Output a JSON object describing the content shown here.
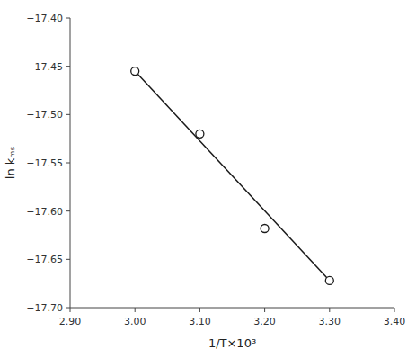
{
  "chart_data": {
    "type": "scatter",
    "xlabel": "1/T×10³",
    "ylabel": "ln kₘₛ",
    "xlim": [
      2.9,
      3.4
    ],
    "ylim": [
      -17.7,
      -17.4
    ],
    "xticks": [
      {
        "value": 2.9,
        "label": "2.90"
      },
      {
        "value": 3.0,
        "label": "3.00"
      },
      {
        "value": 3.1,
        "label": "3.10"
      },
      {
        "value": 3.2,
        "label": "3.20"
      },
      {
        "value": 3.3,
        "label": "3.30"
      },
      {
        "value": 3.4,
        "label": "3.40"
      }
    ],
    "yticks": [
      {
        "value": -17.7,
        "label": "−17.70"
      },
      {
        "value": -17.65,
        "label": "−17.65"
      },
      {
        "value": -17.6,
        "label": "−17.60"
      },
      {
        "value": -17.55,
        "label": "−17.55"
      },
      {
        "value": -17.5,
        "label": "−17.50"
      },
      {
        "value": -17.45,
        "label": "−17.45"
      },
      {
        "value": -17.4,
        "label": "−17.40"
      }
    ],
    "grid": false,
    "series": [
      {
        "type": "line",
        "color": "#1a1a1a",
        "x": [
          3.0,
          3.3
        ],
        "values": [
          -17.455,
          -17.672
        ]
      },
      {
        "type": "scatter",
        "color": "#1a1a1a",
        "marker": "open-circle",
        "x": [
          3.0,
          3.1,
          3.2,
          3.3
        ],
        "values": [
          -17.455,
          -17.52,
          -17.618,
          -17.672
        ]
      }
    ]
  }
}
